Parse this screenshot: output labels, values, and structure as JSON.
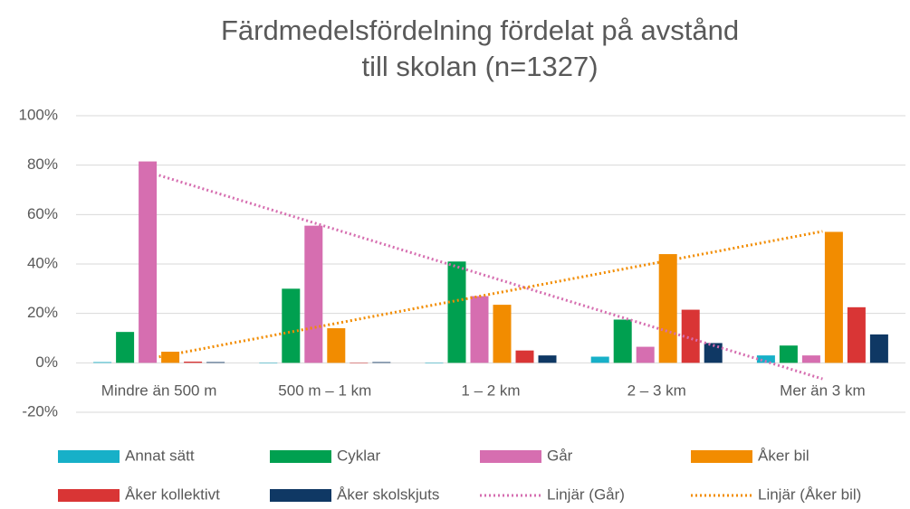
{
  "chart_data": {
    "type": "bar",
    "title": "Färdmedelsfördelning fördelat på avstånd till skolan (n=1327)",
    "categories": [
      "Mindre än 500 m",
      "500 m – 1 km",
      "1 – 2 km",
      "2 – 3 km",
      "Mer än 3 km"
    ],
    "series": [
      {
        "name": "Annat sätt",
        "color": "#17b0c8",
        "values": [
          0.3,
          0,
          0,
          2.5,
          3
        ]
      },
      {
        "name": "Cyklar",
        "color": "#00a050",
        "values": [
          12.5,
          30,
          41,
          17.5,
          7
        ]
      },
      {
        "name": "Går",
        "color": "#d66eb0",
        "values": [
          81.5,
          55.5,
          27,
          6.5,
          3
        ]
      },
      {
        "name": "Åker bil",
        "color": "#f28c00",
        "values": [
          4.5,
          14,
          23.5,
          44,
          53
        ]
      },
      {
        "name": "Åker kollektivt",
        "color": "#d93535",
        "values": [
          0.5,
          0,
          5,
          21.5,
          22.5
        ]
      },
      {
        "name": "Åker skolskjuts",
        "color": "#0f3864",
        "values": [
          0.3,
          0.3,
          3,
          8,
          11.5
        ]
      }
    ],
    "trendlines": [
      {
        "name": "Linjär (Går)",
        "of": 2,
        "color": "#d66eb0"
      },
      {
        "name": "Linjär (Åker bil)",
        "of": 3,
        "color": "#f28c00"
      }
    ],
    "ylim": [
      -20,
      100
    ],
    "yticks": [
      {
        "value": -20,
        "label": "-20%"
      },
      {
        "value": 0,
        "label": "0%"
      },
      {
        "value": 20,
        "label": "20%"
      },
      {
        "value": 40,
        "label": "40%"
      },
      {
        "value": 60,
        "label": "60%"
      },
      {
        "value": 80,
        "label": "80%"
      },
      {
        "value": 100,
        "label": "100%"
      }
    ],
    "grid": true,
    "legend": "bottom"
  }
}
